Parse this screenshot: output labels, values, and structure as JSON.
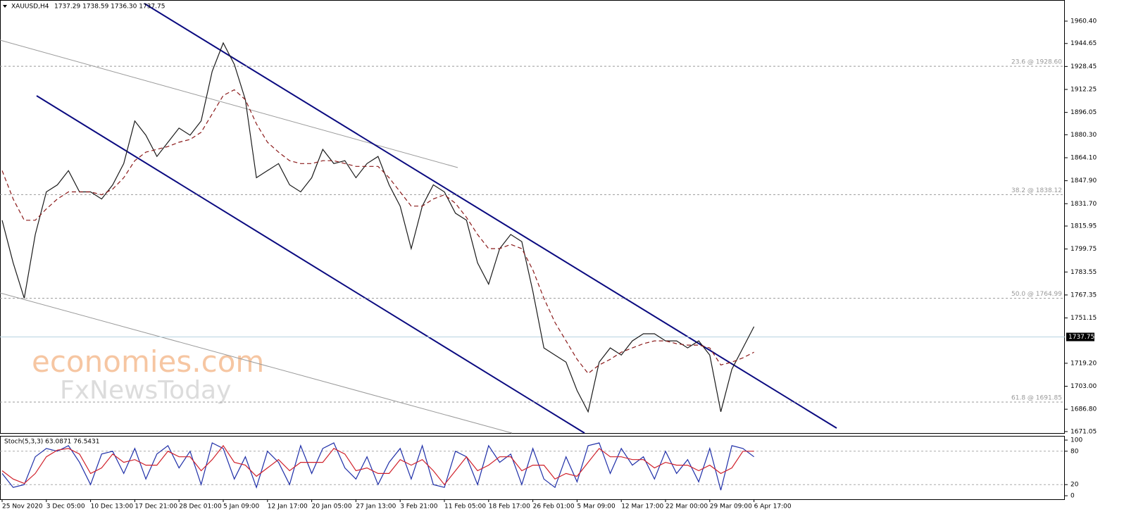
{
  "chart_data": [
    {
      "type": "line",
      "title": "XAUUSD,H4",
      "subtitle": "1737.29 1738.59 1736.30 1737.75",
      "annotations": [
        "economies.com",
        "FxNewsToday"
      ],
      "categories": [
        "25 Nov 2020",
        null,
        null,
        null,
        "3 Dec 05:00",
        null,
        null,
        null,
        "10 Dec 13:00",
        null,
        null,
        null,
        "17 Dec 21:00",
        null,
        null,
        null,
        "28 Dec 01:00",
        null,
        null,
        null,
        "5 Jan 09:00",
        null,
        null,
        null,
        "12 Jan 17:00",
        null,
        null,
        null,
        "20 Jan 05:00",
        null,
        null,
        null,
        "27 Jan 13:00",
        null,
        null,
        null,
        "3 Feb 21:00",
        null,
        null,
        null,
        "11 Feb 05:00",
        null,
        null,
        null,
        "18 Feb 17:00",
        null,
        null,
        null,
        "26 Feb 01:00",
        null,
        null,
        null,
        "5 Mar 09:00",
        null,
        null,
        null,
        "12 Mar 17:00",
        null,
        null,
        null,
        "22 Mar 00:00",
        null,
        null,
        null,
        "29 Mar 09:00",
        null,
        null,
        null,
        "6 Apr 17:00"
      ],
      "series": [
        {
          "name": "XAUUSD",
          "color": "#1a1a1a",
          "values": [
            1820,
            1790,
            1765,
            1810,
            1840,
            1845,
            1855,
            1840,
            1840,
            1835,
            1845,
            1860,
            1890,
            1880,
            1865,
            1875,
            1885,
            1880,
            1890,
            1925,
            1945,
            1930,
            1905,
            1850,
            1855,
            1860,
            1845,
            1840,
            1850,
            1870,
            1860,
            1862,
            1850,
            1860,
            1865,
            1845,
            1830,
            1800,
            1830,
            1845,
            1840,
            1825,
            1820,
            1790,
            1775,
            1800,
            1810,
            1805,
            1770,
            1730,
            1725,
            1720,
            1700,
            1685,
            1720,
            1730,
            1725,
            1735,
            1740,
            1740,
            1735,
            1735,
            1730,
            1735,
            1725,
            1685,
            1715,
            1730,
            1745
          ]
        },
        {
          "name": "MA",
          "color": "#8b1a1a",
          "values": [
            1855,
            1835,
            1820,
            1820,
            1828,
            1835,
            1840,
            1840,
            1840,
            1838,
            1842,
            1850,
            1862,
            1868,
            1870,
            1872,
            1875,
            1877,
            1882,
            1895,
            1908,
            1912,
            1905,
            1888,
            1875,
            1868,
            1862,
            1860,
            1860,
            1862,
            1862,
            1860,
            1858,
            1858,
            1858,
            1850,
            1840,
            1830,
            1830,
            1835,
            1838,
            1832,
            1822,
            1810,
            1800,
            1800,
            1803,
            1800,
            1785,
            1765,
            1748,
            1735,
            1722,
            1712,
            1718,
            1722,
            1727,
            1730,
            1733,
            1735,
            1735,
            1733,
            1732,
            1732,
            1730,
            1718,
            1720,
            1723,
            1727
          ]
        }
      ],
      "last_price": 1737.75,
      "levels": [
        {
          "label": "23.6 @ 1928.60",
          "value": 1928.6
        },
        {
          "label": "38.2 @ 1838.12",
          "value": 1838.12
        },
        {
          "label": "50.0 @ 1764.99",
          "value": 1764.99
        },
        {
          "label": "61.8 @ 1691.85",
          "value": 1691.85
        }
      ],
      "ylim": [
        1670,
        1975.3
      ],
      "yticks": [
        {
          "value": 1960.4,
          "label": "1960.40"
        },
        1944.65,
        1928.45,
        1912.25,
        1896.05,
        {
          "value": 1880.3,
          "label": "1880.30"
        },
        {
          "value": 1864.1,
          "label": "1864.10"
        },
        {
          "value": 1847.9,
          "label": "1847.90"
        },
        {
          "value": 1831.7,
          "label": "1831.70"
        },
        1815.95,
        1799.75,
        1783.55,
        1767.35,
        1751.15,
        {
          "value": 1719.2,
          "label": "1719.20"
        },
        {
          "value": 1703,
          "label": "1703.00"
        },
        {
          "value": 1686.8,
          "label": "1686.80"
        },
        1671.05
      ]
    },
    {
      "type": "line",
      "title": "Stoch(5,3,3) 63.0871 76.5431",
      "series": [
        {
          "name": "Main",
          "color": "#1f2fa8",
          "values": [
            40,
            15,
            20,
            70,
            85,
            80,
            90,
            60,
            20,
            75,
            80,
            40,
            85,
            30,
            75,
            90,
            50,
            80,
            20,
            95,
            85,
            30,
            70,
            15,
            80,
            60,
            20,
            90,
            40,
            85,
            95,
            50,
            30,
            70,
            20,
            60,
            85,
            30,
            90,
            20,
            15,
            80,
            70,
            20,
            90,
            60,
            75,
            20,
            85,
            30,
            15,
            70,
            25,
            90,
            95,
            40,
            85,
            55,
            70,
            30,
            80,
            40,
            65,
            25,
            85,
            10,
            90,
            85,
            70
          ]
        },
        {
          "name": "Signal",
          "color": "#d0202a",
          "values": [
            45,
            30,
            22,
            40,
            70,
            82,
            85,
            75,
            40,
            50,
            75,
            60,
            65,
            55,
            55,
            80,
            70,
            70,
            45,
            65,
            90,
            60,
            55,
            35,
            50,
            65,
            45,
            60,
            60,
            60,
            85,
            75,
            45,
            50,
            40,
            40,
            65,
            55,
            65,
            45,
            20,
            45,
            70,
            45,
            55,
            70,
            70,
            45,
            55,
            55,
            30,
            40,
            35,
            60,
            85,
            70,
            70,
            65,
            65,
            50,
            60,
            55,
            55,
            45,
            55,
            40,
            50,
            80,
            80
          ]
        }
      ],
      "ylim": [
        -6.3,
        107.6
      ],
      "yticks": [
        100,
        80,
        20,
        0
      ],
      "levels": [
        80,
        20
      ]
    }
  ]
}
